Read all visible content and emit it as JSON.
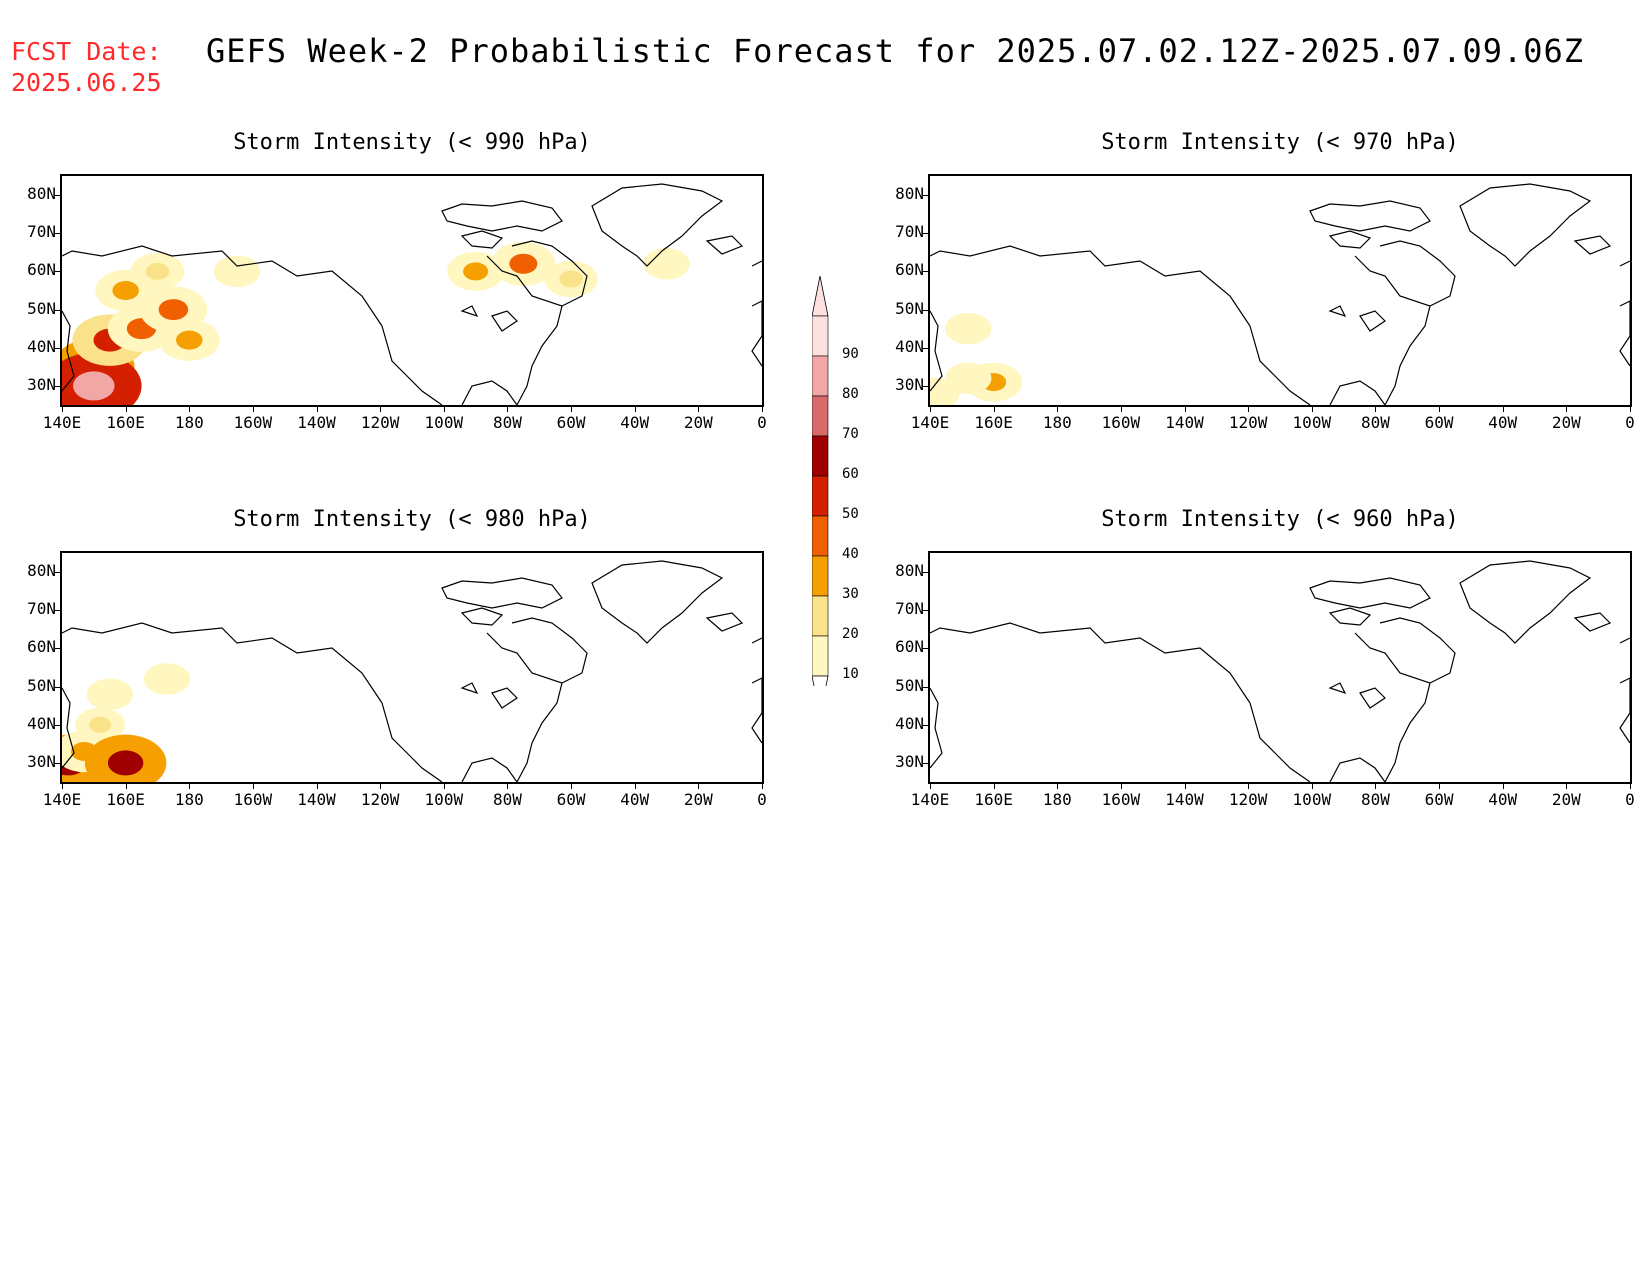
{
  "header": {
    "fcst_label": "FCST Date:",
    "fcst_date": "2025.06.25",
    "title": "GEFS Week-2 Probabilistic Forecast for 2025.07.02.12Z-2025.07.09.06Z"
  },
  "axes": {
    "x_ticks": [
      "140E",
      "160E",
      "180",
      "160W",
      "140W",
      "120W",
      "100W",
      "80W",
      "60W",
      "40W",
      "20W",
      "0"
    ],
    "y_ticks": [
      "80N",
      "70N",
      "60N",
      "50N",
      "40N",
      "30N"
    ]
  },
  "panels": [
    {
      "id": "p990",
      "title": "Storm Intensity (< 990 hPa)"
    },
    {
      "id": "p970",
      "title": "Storm Intensity (< 970 hPa)"
    },
    {
      "id": "p980",
      "title": "Storm Intensity (< 980 hPa)"
    },
    {
      "id": "p960",
      "title": "Storm Intensity (< 960 hPa)"
    }
  ],
  "colorbar": {
    "labels": [
      "90",
      "80",
      "70",
      "60",
      "50",
      "40",
      "30",
      "20",
      "10"
    ],
    "colors": [
      "#fde0e0",
      "#f2a7a7",
      "#d96a6a",
      "#a00000",
      "#d42000",
      "#f06000",
      "#f5a000",
      "#fae28a",
      "#fff7bf"
    ]
  },
  "chart_data": {
    "type": "heatmap",
    "units": "probability (%)",
    "lon_range": [
      "140E",
      "0"
    ],
    "lat_range": [
      "25N",
      "85N"
    ],
    "panels": [
      {
        "title": "Storm Intensity (< 990 hPa)",
        "regions": [
          {
            "lon": 150,
            "lat": 35,
            "value": 65
          },
          {
            "lon": 150,
            "lat": 30,
            "value": 85
          },
          {
            "lon": 155,
            "lat": 42,
            "value": 55
          },
          {
            "lon": 165,
            "lat": 45,
            "value": 45
          },
          {
            "lon": 160,
            "lat": 55,
            "value": 35
          },
          {
            "lon": 170,
            "lat": 60,
            "value": 25
          },
          {
            "lon": 175,
            "lat": 50,
            "value": 45
          },
          {
            "lon": 180,
            "lat": 42,
            "value": 35
          },
          {
            "lon": -165,
            "lat": 60,
            "value": 15
          },
          {
            "lon": -90,
            "lat": 60,
            "value": 30
          },
          {
            "lon": -75,
            "lat": 62,
            "value": 40
          },
          {
            "lon": -60,
            "lat": 58,
            "value": 25
          },
          {
            "lon": -30,
            "lat": 62,
            "value": 15
          }
        ]
      },
      {
        "title": "Storm Intensity (< 970 hPa)",
        "regions": [
          {
            "lon": 160,
            "lat": 31,
            "value": 30
          },
          {
            "lon": 152,
            "lat": 32,
            "value": 15
          },
          {
            "lon": 142,
            "lat": 28,
            "value": 15
          },
          {
            "lon": 152,
            "lat": 45,
            "value": 15
          }
        ]
      },
      {
        "title": "Storm Intensity (< 980 hPa)",
        "regions": [
          {
            "lon": 142,
            "lat": 30,
            "value": 65
          },
          {
            "lon": 147,
            "lat": 33,
            "value": 35
          },
          {
            "lon": 152,
            "lat": 40,
            "value": 20
          },
          {
            "lon": 160,
            "lat": 30,
            "value": 65
          },
          {
            "lon": 155,
            "lat": 48,
            "value": 15
          },
          {
            "lon": 173,
            "lat": 52,
            "value": 15
          }
        ]
      },
      {
        "title": "Storm Intensity (< 960 hPa)",
        "regions": []
      }
    ]
  }
}
